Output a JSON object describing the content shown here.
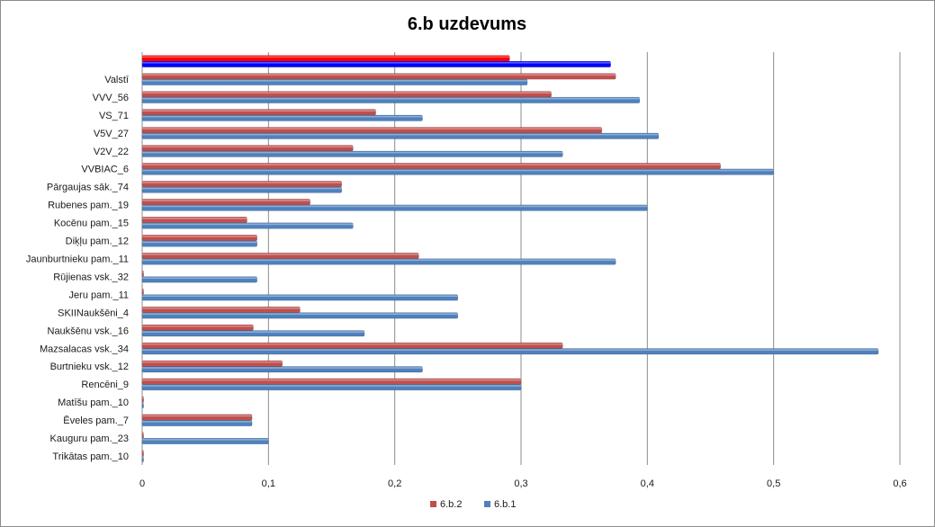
{
  "chart_data": {
    "type": "bar",
    "orientation": "horizontal",
    "title": "6.b uzdevums",
    "categories": [
      "Trikātas pam._10",
      "Kauguru pam._23",
      "Ēveles pam._7",
      "Matīšu pam._10",
      "Rencēni_9",
      "Burtnieku vsk._12",
      "Mazsalacas vsk._34",
      "Naukšēnu vsk._16",
      "SKIINaukšēni_4",
      "Jeru pam._11",
      "Rūjienas vsk._32",
      "Jaunburtnieku pam._11",
      "Diķļu pam._12",
      "Kocēnu pam._15",
      "Rubenes pam._19",
      "Pārgaujas sāk._74",
      "VVBIAC_6",
      "V2V_22",
      "V5V_27",
      "VS_71",
      "VVV_56",
      "Valstī",
      ""
    ],
    "series": [
      {
        "name": "6.b.2",
        "color": "#c0504d",
        "values": [
          0,
          0,
          0.087,
          0,
          0.3,
          0.111,
          0.333,
          0.088,
          0.125,
          0,
          0,
          0.219,
          0.091,
          0.083,
          0.133,
          0.158,
          0.458,
          0.167,
          0.364,
          0.185,
          0.324,
          0.375,
          0.291
        ]
      },
      {
        "name": "6.b.1",
        "color": "#4f81bd",
        "values": [
          0,
          0.1,
          0.087,
          0,
          0.3,
          0.222,
          0.583,
          0.176,
          0.25,
          0.25,
          0.091,
          0.375,
          0.091,
          0.167,
          0.4,
          0.158,
          0.5,
          0.333,
          0.409,
          0.222,
          0.394,
          0.305,
          0.371
        ]
      }
    ],
    "highlight_row_colors": [
      "#ff0000",
      "#0000ff"
    ],
    "xlim": [
      0,
      0.6
    ],
    "xticks": [
      "0",
      "0,1",
      "0,2",
      "0,3",
      "0,4",
      "0,5",
      "0,6"
    ],
    "grid": true,
    "legend_position": "bottom"
  }
}
